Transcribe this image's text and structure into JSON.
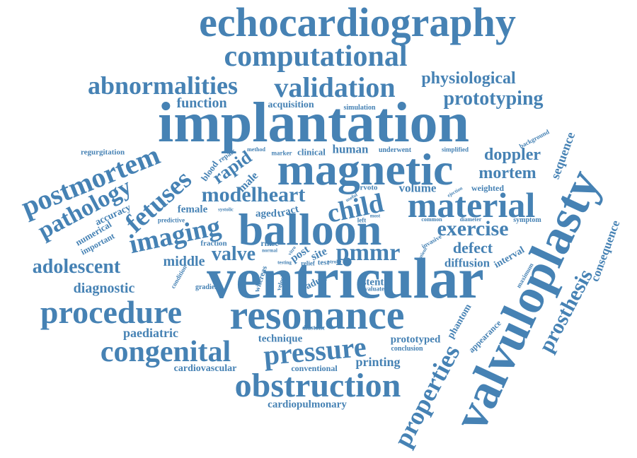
{
  "color": "#4682b4",
  "background": "#ffffff",
  "words": [
    "echocardiography",
    "computational",
    "abnormalities",
    "validation",
    "physiological",
    "prototyping",
    "function",
    "acquisition",
    "simulation",
    "implantation",
    "background",
    "regurgitation",
    "method",
    "marker",
    "clinical",
    "human",
    "underwent",
    "simplified",
    "doppler",
    "sequence",
    "postmortem",
    "rapid",
    "repair",
    "blood",
    "male",
    "magnetic",
    "mortem",
    "valvuloplasty",
    "pathology",
    "fetuses",
    "modelheart",
    "rvoto",
    "volume",
    "weighted",
    "material",
    "ejection",
    "useful",
    "child",
    "female",
    "systolic",
    "aged",
    "tract",
    "accuracy",
    "predictive",
    "imaging",
    "most",
    "left",
    "common",
    "diameter",
    "symptom",
    "balloon",
    "exercise",
    "numerical",
    "important",
    "fraction",
    "rmse",
    "normal",
    "invasive",
    "defect",
    "consequence",
    "valve",
    "pmmr",
    "post",
    "site",
    "diffusion",
    "interval",
    "adolescent",
    "middle",
    "vitro",
    "test",
    "stroke",
    "relief",
    "testing",
    "patient",
    "maximum",
    "diagnostic",
    "gradient",
    "condition",
    "whereas",
    "velocity",
    "adult",
    "stent",
    "evaluate",
    "ventricular",
    "prosthesis",
    "procedure",
    "resonance",
    "phantom",
    "paediatric",
    "diastolic",
    "appearance",
    "congenital",
    "technique",
    "prototyped",
    "pressure",
    "conclusion",
    "printing",
    "cardiovascular",
    "conventional",
    "properties",
    "obstruction",
    "cardiopulmonary"
  ]
}
